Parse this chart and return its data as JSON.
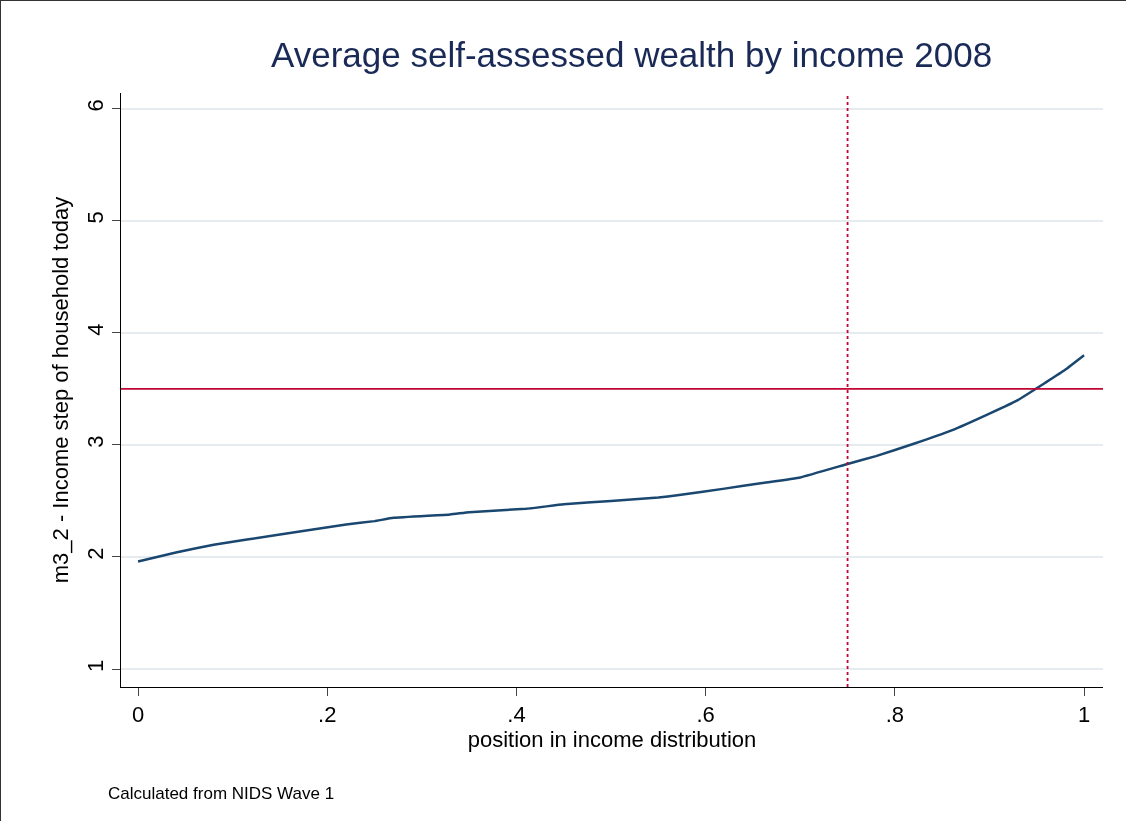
{
  "chart_data": {
    "type": "line",
    "title": "Average self-assessed wealth by income 2008",
    "xlabel": "position in income distribution",
    "ylabel": "m3_2 - Income step of household today",
    "annotations": [
      "Calculated from NIDS Wave 1"
    ],
    "series": [
      {
        "color": "#1a476f",
        "x": [
          0,
          0.02,
          0.04,
          0.08,
          0.15,
          0.22,
          0.25,
          0.27,
          0.33,
          0.35,
          0.41,
          0.45,
          0.5,
          0.55,
          0.57,
          0.62,
          0.66,
          0.7,
          0.75,
          0.78,
          0.82,
          0.86,
          0.9,
          0.93,
          0.96,
          0.98,
          1.0
        ],
        "values": [
          1.96,
          2.0,
          2.04,
          2.11,
          2.2,
          2.29,
          2.32,
          2.35,
          2.38,
          2.4,
          2.43,
          2.47,
          2.5,
          2.53,
          2.55,
          2.61,
          2.66,
          2.71,
          2.83,
          2.9,
          3.01,
          3.13,
          3.28,
          3.4,
          3.56,
          3.67,
          3.8
        ]
      }
    ],
    "ref_lines": [
      {
        "axis": "y",
        "value": 3.5,
        "color": "#c10534",
        "line_style": "solid"
      },
      {
        "axis": "x",
        "value": 0.75,
        "color": "#c10534",
        "line_style": "dotted"
      }
    ],
    "xlim": [
      -0.018,
      1.02
    ],
    "ylim": [
      0.84,
      6.14
    ],
    "xticks": [
      0,
      {
        "value": 0.2,
        "label": ".2"
      },
      {
        "value": 0.4,
        "label": ".4"
      },
      {
        "value": 0.6,
        "label": ".6"
      },
      {
        "value": 0.8,
        "label": ".8"
      },
      1
    ],
    "yticks": [
      1,
      2,
      3,
      4,
      5,
      6
    ],
    "grid": "y",
    "marker": "none",
    "line_style": "solid"
  }
}
